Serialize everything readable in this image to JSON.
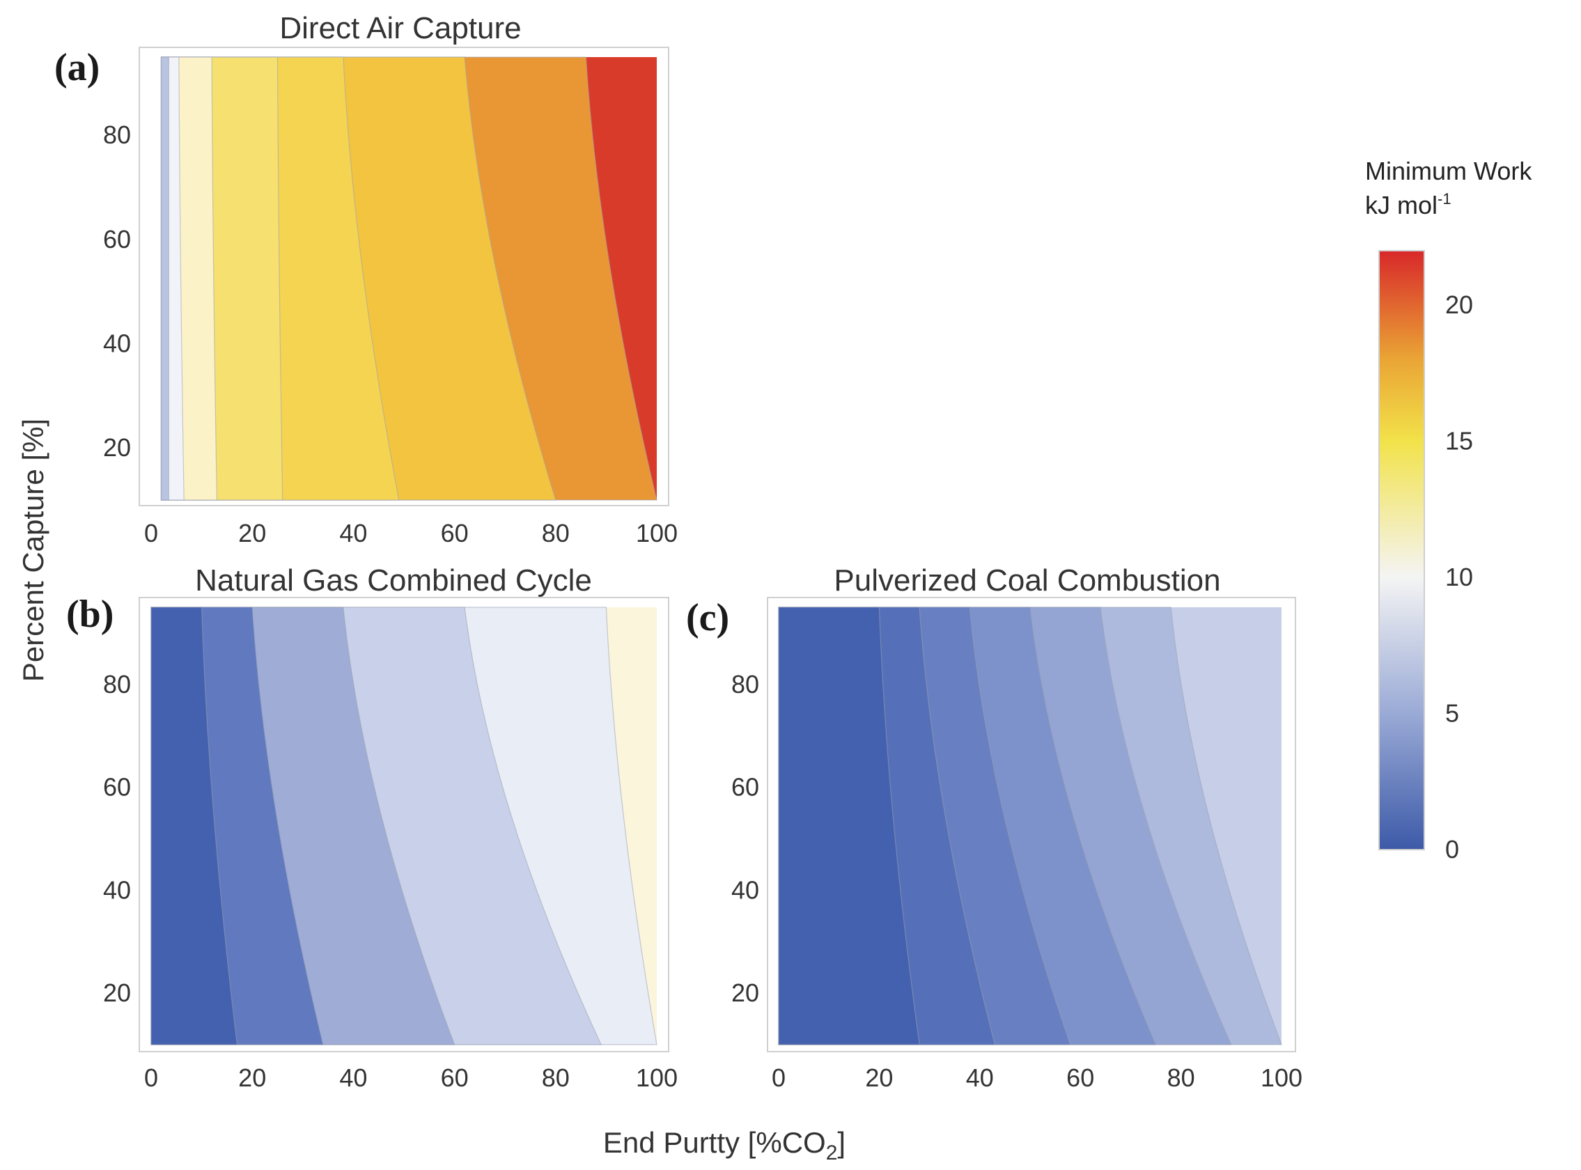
{
  "chart_data": [
    {
      "type": "heatmap",
      "id": "a",
      "letter": "(a)",
      "title": "Direct Air Capture",
      "x_ticks": [
        "0",
        "20",
        "40",
        "60",
        "80",
        "100"
      ],
      "y_ticks": [
        "20",
        "40",
        "60",
        "80"
      ],
      "xlim": [
        0,
        100
      ],
      "ylim": [
        10,
        95
      ],
      "x_range": [
        2,
        100
      ],
      "contour_bands": [
        {
          "value": 7.5,
          "color": "#b9c4e2",
          "x_bottom": 3.5,
          "x_top": 3.5
        },
        {
          "value": 9.5,
          "color": "#f1f3f8",
          "x_bottom": 6.5,
          "x_top": 5.5
        },
        {
          "value": 12,
          "color": "#fbf3c7",
          "x_bottom": 13,
          "x_top": 12
        },
        {
          "value": 14,
          "color": "#f6e070",
          "x_bottom": 26,
          "x_top": 25
        },
        {
          "value": 16,
          "color": "#f5d452",
          "x_bottom": 49,
          "x_top": 38
        },
        {
          "value": 18,
          "color": "#f2c440",
          "x_bottom": 80,
          "x_top": 62
        },
        {
          "value": 20,
          "color": "#e99735",
          "x_bottom": 100,
          "x_top": 86
        },
        {
          "value": 22,
          "color": "#d93b2b",
          "x_bottom": 100,
          "x_top": 100
        }
      ]
    },
    {
      "type": "heatmap",
      "id": "b",
      "letter": "(b)",
      "title": "Natural Gas Combined Cycle",
      "x_ticks": [
        "0",
        "20",
        "40",
        "60",
        "80",
        "100"
      ],
      "y_ticks": [
        "20",
        "40",
        "60",
        "80"
      ],
      "xlim": [
        0,
        100
      ],
      "ylim": [
        10,
        95
      ],
      "x_range": [
        0,
        100
      ],
      "contour_bands": [
        {
          "value": 1,
          "color": "#4461af",
          "x_bottom": 17,
          "x_top": 10
        },
        {
          "value": 3,
          "color": "#6079bf",
          "x_bottom": 34,
          "x_top": 20
        },
        {
          "value": 5,
          "color": "#9eacd6",
          "x_bottom": 60,
          "x_top": 38
        },
        {
          "value": 7,
          "color": "#c9d1ea",
          "x_bottom": 89,
          "x_top": 62
        },
        {
          "value": 9,
          "color": "#e9edf6",
          "x_bottom": 100,
          "x_top": 90
        },
        {
          "value": 10.5,
          "color": "#fbf5dc",
          "x_bottom": 100,
          "x_top": 100
        }
      ]
    },
    {
      "type": "heatmap",
      "id": "c",
      "letter": "(c)",
      "title": "Pulverized Coal Combustion",
      "x_ticks": [
        "0",
        "20",
        "40",
        "60",
        "80",
        "100"
      ],
      "y_ticks": [
        "20",
        "40",
        "60",
        "80"
      ],
      "xlim": [
        0,
        100
      ],
      "ylim": [
        10,
        95
      ],
      "x_range": [
        0,
        100
      ],
      "contour_bands": [
        {
          "value": 0.5,
          "color": "#4461af",
          "x_bottom": 28,
          "x_top": 20
        },
        {
          "value": 1.5,
          "color": "#5570b8",
          "x_bottom": 43,
          "x_top": 28
        },
        {
          "value": 2.5,
          "color": "#6880c2",
          "x_bottom": 58,
          "x_top": 38
        },
        {
          "value": 3.5,
          "color": "#7d92ca",
          "x_bottom": 75,
          "x_top": 50
        },
        {
          "value": 4.5,
          "color": "#94a5d3",
          "x_bottom": 90,
          "x_top": 64
        },
        {
          "value": 5.5,
          "color": "#adbadd",
          "x_bottom": 100,
          "x_top": 78
        },
        {
          "value": 6.5,
          "color": "#c6cfe7",
          "x_bottom": 100,
          "x_top": 91
        }
      ]
    }
  ],
  "shared": {
    "ylabel": "Percent Capture [%]",
    "xlabel_main": "End Purtty [%CO",
    "xlabel_sub": "2",
    "xlabel_end": "]"
  },
  "colorbar": {
    "title_line1": "Minimum Work",
    "title_line2": "kJ mol",
    "title_sup": "-1",
    "min": 0,
    "max": 22,
    "ticks": [
      {
        "value": 0,
        "label": "0"
      },
      {
        "value": 5,
        "label": "5"
      },
      {
        "value": 10,
        "label": "10"
      },
      {
        "value": 15,
        "label": "15"
      },
      {
        "value": 20,
        "label": "20"
      }
    ],
    "stops": [
      {
        "value": 0,
        "color": "#3d5aa8"
      },
      {
        "value": 5,
        "color": "#9aaad6"
      },
      {
        "value": 10,
        "color": "#f4f4f4"
      },
      {
        "value": 15,
        "color": "#f2e24a"
      },
      {
        "value": 18,
        "color": "#eaa535"
      },
      {
        "value": 22,
        "color": "#d8282a"
      }
    ]
  }
}
